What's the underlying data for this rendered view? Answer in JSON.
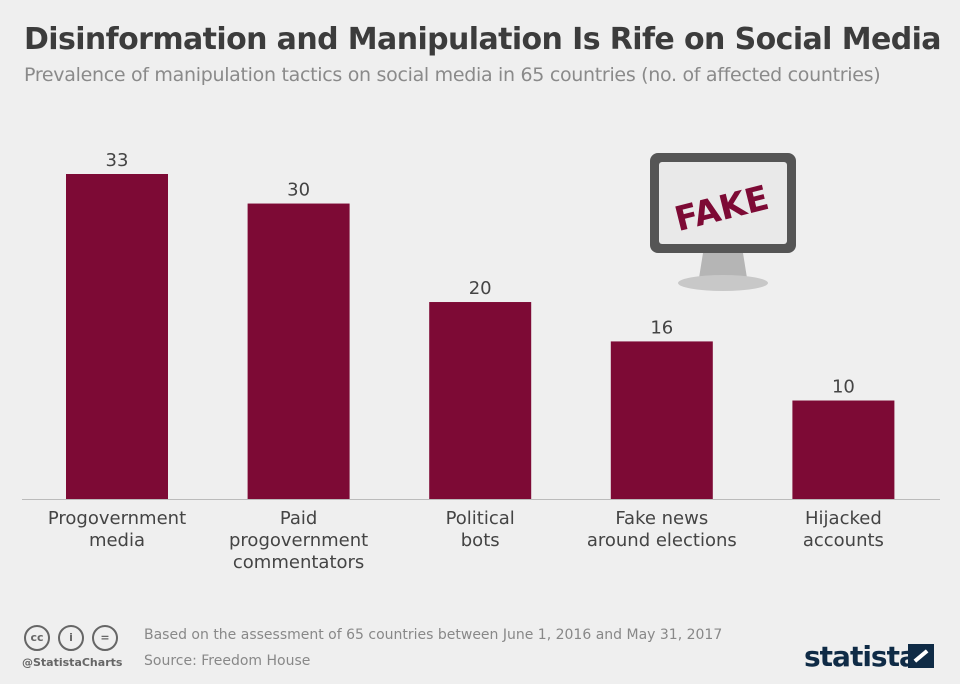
{
  "title": "Disinformation and Manipulation Is Rife on Social Media",
  "subtitle": "Prevalence of manipulation tactics on social media in 65 countries (no. of affected countries)",
  "chart_data": {
    "type": "bar",
    "categories": [
      [
        "Progovernment",
        "media"
      ],
      [
        "Paid",
        "progovernment",
        "commentators"
      ],
      [
        "Political",
        "bots"
      ],
      [
        "Fake news",
        "around elections"
      ],
      [
        "Hijacked",
        "accounts"
      ]
    ],
    "values": [
      33,
      30,
      20,
      16,
      10
    ],
    "ylim": [
      0,
      33
    ],
    "grid": false,
    "bar_color": "#7d0a35"
  },
  "illustration": {
    "screen_text": "FAKE"
  },
  "footer": {
    "note": "Based on the assessment of 65 countries between June 1, 2016 and May 31, 2017",
    "source": "Source: Freedom House",
    "handle": "@StatistaCharts",
    "logo": "statista",
    "license_icons": [
      "cc-icon",
      "by-icon",
      "nd-icon"
    ]
  }
}
